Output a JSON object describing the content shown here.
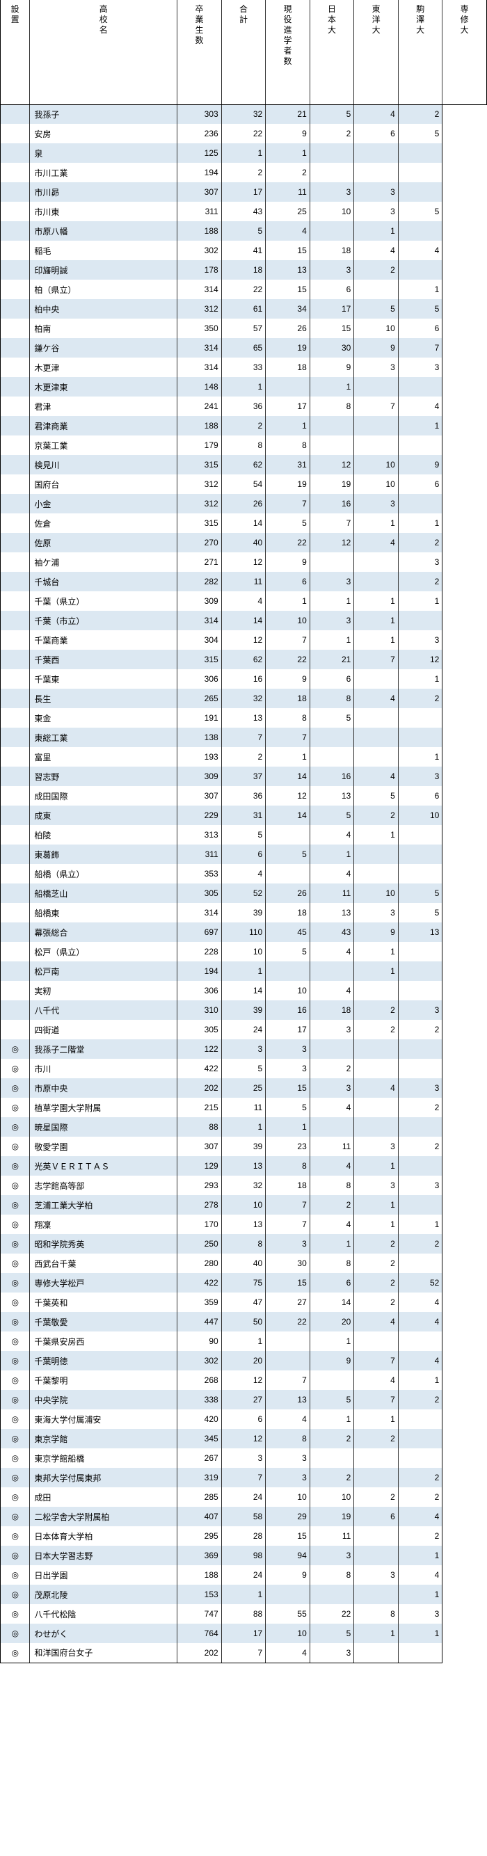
{
  "headers": [
    "設置",
    "高校名",
    "卒業生数",
    "合計",
    "現役進学者数",
    "日本大",
    "東洋大",
    "駒澤大",
    "専修大"
  ],
  "rows": [
    {
      "m": "",
      "n": "我孫子",
      "v": [
        "303",
        "32",
        "21",
        "5",
        "4",
        "2"
      ]
    },
    {
      "m": "",
      "n": "安房",
      "v": [
        "236",
        "22",
        "9",
        "2",
        "6",
        "5"
      ]
    },
    {
      "m": "",
      "n": "泉",
      "v": [
        "125",
        "1",
        "1",
        "",
        "",
        ""
      ]
    },
    {
      "m": "",
      "n": "市川工業",
      "v": [
        "194",
        "2",
        "2",
        "",
        "",
        ""
      ]
    },
    {
      "m": "",
      "n": "市川昴",
      "v": [
        "307",
        "17",
        "11",
        "3",
        "3",
        ""
      ]
    },
    {
      "m": "",
      "n": "市川東",
      "v": [
        "311",
        "43",
        "25",
        "10",
        "3",
        "5"
      ]
    },
    {
      "m": "",
      "n": "市原八幡",
      "v": [
        "188",
        "5",
        "4",
        "",
        "1",
        ""
      ]
    },
    {
      "m": "",
      "n": "稲毛",
      "v": [
        "302",
        "41",
        "15",
        "18",
        "4",
        "4"
      ]
    },
    {
      "m": "",
      "n": "印旛明誠",
      "v": [
        "178",
        "18",
        "13",
        "3",
        "2",
        ""
      ]
    },
    {
      "m": "",
      "n": "柏（県立）",
      "v": [
        "314",
        "22",
        "15",
        "6",
        "",
        "1"
      ]
    },
    {
      "m": "",
      "n": "柏中央",
      "v": [
        "312",
        "61",
        "34",
        "17",
        "5",
        "5"
      ]
    },
    {
      "m": "",
      "n": "柏南",
      "v": [
        "350",
        "57",
        "26",
        "15",
        "10",
        "6"
      ]
    },
    {
      "m": "",
      "n": "鎌ケ谷",
      "v": [
        "314",
        "65",
        "19",
        "30",
        "9",
        "7"
      ]
    },
    {
      "m": "",
      "n": "木更津",
      "v": [
        "314",
        "33",
        "18",
        "9",
        "3",
        "3"
      ]
    },
    {
      "m": "",
      "n": "木更津東",
      "v": [
        "148",
        "1",
        "",
        "1",
        "",
        ""
      ]
    },
    {
      "m": "",
      "n": "君津",
      "v": [
        "241",
        "36",
        "17",
        "8",
        "7",
        "4"
      ]
    },
    {
      "m": "",
      "n": "君津商業",
      "v": [
        "188",
        "2",
        "1",
        "",
        "",
        "1"
      ]
    },
    {
      "m": "",
      "n": "京葉工業",
      "v": [
        "179",
        "8",
        "8",
        "",
        "",
        ""
      ]
    },
    {
      "m": "",
      "n": "検見川",
      "v": [
        "315",
        "62",
        "31",
        "12",
        "10",
        "9"
      ]
    },
    {
      "m": "",
      "n": "国府台",
      "v": [
        "312",
        "54",
        "19",
        "19",
        "10",
        "6"
      ]
    },
    {
      "m": "",
      "n": "小金",
      "v": [
        "312",
        "26",
        "7",
        "16",
        "3",
        ""
      ]
    },
    {
      "m": "",
      "n": "佐倉",
      "v": [
        "315",
        "14",
        "5",
        "7",
        "1",
        "1"
      ]
    },
    {
      "m": "",
      "n": "佐原",
      "v": [
        "270",
        "40",
        "22",
        "12",
        "4",
        "2"
      ]
    },
    {
      "m": "",
      "n": "袖ケ浦",
      "v": [
        "271",
        "12",
        "9",
        "",
        "",
        "3"
      ]
    },
    {
      "m": "",
      "n": "千城台",
      "v": [
        "282",
        "11",
        "6",
        "3",
        "",
        "2"
      ]
    },
    {
      "m": "",
      "n": "千葉（県立）",
      "v": [
        "309",
        "4",
        "1",
        "1",
        "1",
        "1"
      ]
    },
    {
      "m": "",
      "n": "千葉（市立）",
      "v": [
        "314",
        "14",
        "10",
        "3",
        "1",
        ""
      ]
    },
    {
      "m": "",
      "n": "千葉商業",
      "v": [
        "304",
        "12",
        "7",
        "1",
        "1",
        "3"
      ]
    },
    {
      "m": "",
      "n": "千葉西",
      "v": [
        "315",
        "62",
        "22",
        "21",
        "7",
        "12"
      ]
    },
    {
      "m": "",
      "n": "千葉東",
      "v": [
        "306",
        "16",
        "9",
        "6",
        "",
        "1"
      ]
    },
    {
      "m": "",
      "n": "長生",
      "v": [
        "265",
        "32",
        "18",
        "8",
        "4",
        "2"
      ]
    },
    {
      "m": "",
      "n": "東金",
      "v": [
        "191",
        "13",
        "8",
        "5",
        "",
        ""
      ]
    },
    {
      "m": "",
      "n": "東総工業",
      "v": [
        "138",
        "7",
        "7",
        "",
        "",
        ""
      ]
    },
    {
      "m": "",
      "n": "富里",
      "v": [
        "193",
        "2",
        "1",
        "",
        "",
        "1"
      ]
    },
    {
      "m": "",
      "n": "習志野",
      "v": [
        "309",
        "37",
        "14",
        "16",
        "4",
        "3"
      ]
    },
    {
      "m": "",
      "n": "成田国際",
      "v": [
        "307",
        "36",
        "12",
        "13",
        "5",
        "6"
      ]
    },
    {
      "m": "",
      "n": "成東",
      "v": [
        "229",
        "31",
        "14",
        "5",
        "2",
        "10"
      ]
    },
    {
      "m": "",
      "n": "柏陵",
      "v": [
        "313",
        "5",
        "",
        "4",
        "1",
        ""
      ]
    },
    {
      "m": "",
      "n": "東葛飾",
      "v": [
        "311",
        "6",
        "5",
        "1",
        "",
        ""
      ]
    },
    {
      "m": "",
      "n": "船橋（県立）",
      "v": [
        "353",
        "4",
        "",
        "4",
        "",
        ""
      ]
    },
    {
      "m": "",
      "n": "船橋芝山",
      "v": [
        "305",
        "52",
        "26",
        "11",
        "10",
        "5"
      ]
    },
    {
      "m": "",
      "n": "船橋東",
      "v": [
        "314",
        "39",
        "18",
        "13",
        "3",
        "5"
      ]
    },
    {
      "m": "",
      "n": "幕張総合",
      "v": [
        "697",
        "110",
        "45",
        "43",
        "9",
        "13"
      ]
    },
    {
      "m": "",
      "n": "松戸（県立）",
      "v": [
        "228",
        "10",
        "5",
        "4",
        "1",
        ""
      ]
    },
    {
      "m": "",
      "n": "松戸南",
      "v": [
        "194",
        "1",
        "",
        "",
        "1",
        ""
      ]
    },
    {
      "m": "",
      "n": "実籾",
      "v": [
        "306",
        "14",
        "10",
        "4",
        "",
        ""
      ]
    },
    {
      "m": "",
      "n": "八千代",
      "v": [
        "310",
        "39",
        "16",
        "18",
        "2",
        "3"
      ]
    },
    {
      "m": "",
      "n": "四街道",
      "v": [
        "305",
        "24",
        "17",
        "3",
        "2",
        "2"
      ]
    },
    {
      "m": "◎",
      "n": "我孫子二階堂",
      "v": [
        "122",
        "3",
        "3",
        "",
        "",
        ""
      ]
    },
    {
      "m": "◎",
      "n": "市川",
      "v": [
        "422",
        "5",
        "3",
        "2",
        "",
        ""
      ]
    },
    {
      "m": "◎",
      "n": "市原中央",
      "v": [
        "202",
        "25",
        "15",
        "3",
        "4",
        "3"
      ]
    },
    {
      "m": "◎",
      "n": "植草学園大学附属",
      "v": [
        "215",
        "11",
        "5",
        "4",
        "",
        "2"
      ]
    },
    {
      "m": "◎",
      "n": "暁星国際",
      "v": [
        "88",
        "1",
        "1",
        "",
        "",
        ""
      ]
    },
    {
      "m": "◎",
      "n": "敬愛学園",
      "v": [
        "307",
        "39",
        "23",
        "11",
        "3",
        "2"
      ]
    },
    {
      "m": "◎",
      "n": "光英ＶＥＲＩＴＡＳ",
      "v": [
        "129",
        "13",
        "8",
        "4",
        "1",
        ""
      ]
    },
    {
      "m": "◎",
      "n": "志学館高等部",
      "v": [
        "293",
        "32",
        "18",
        "8",
        "3",
        "3"
      ]
    },
    {
      "m": "◎",
      "n": "芝浦工業大学柏",
      "v": [
        "278",
        "10",
        "7",
        "2",
        "1",
        ""
      ]
    },
    {
      "m": "◎",
      "n": "翔凜",
      "v": [
        "170",
        "13",
        "7",
        "4",
        "1",
        "1"
      ]
    },
    {
      "m": "◎",
      "n": "昭和学院秀英",
      "v": [
        "250",
        "8",
        "3",
        "1",
        "2",
        "2"
      ]
    },
    {
      "m": "◎",
      "n": "西武台千葉",
      "v": [
        "280",
        "40",
        "30",
        "8",
        "2",
        ""
      ]
    },
    {
      "m": "◎",
      "n": "専修大学松戸",
      "v": [
        "422",
        "75",
        "15",
        "6",
        "2",
        "52"
      ]
    },
    {
      "m": "◎",
      "n": "千葉英和",
      "v": [
        "359",
        "47",
        "27",
        "14",
        "2",
        "4"
      ]
    },
    {
      "m": "◎",
      "n": "千葉敬愛",
      "v": [
        "447",
        "50",
        "22",
        "20",
        "4",
        "4"
      ]
    },
    {
      "m": "◎",
      "n": "千葉県安房西",
      "v": [
        "90",
        "1",
        "",
        "1",
        "",
        ""
      ]
    },
    {
      "m": "◎",
      "n": "千葉明徳",
      "v": [
        "302",
        "20",
        "",
        "9",
        "7",
        "4"
      ]
    },
    {
      "m": "◎",
      "n": "千葉黎明",
      "v": [
        "268",
        "12",
        "7",
        "",
        "4",
        "1"
      ]
    },
    {
      "m": "◎",
      "n": "中央学院",
      "v": [
        "338",
        "27",
        "13",
        "5",
        "7",
        "2"
      ]
    },
    {
      "m": "◎",
      "n": "東海大学付属浦安",
      "v": [
        "420",
        "6",
        "4",
        "1",
        "1",
        ""
      ]
    },
    {
      "m": "◎",
      "n": "東京学館",
      "v": [
        "345",
        "12",
        "8",
        "2",
        "2",
        ""
      ]
    },
    {
      "m": "◎",
      "n": "東京学館船橋",
      "v": [
        "267",
        "3",
        "3",
        "",
        "",
        ""
      ]
    },
    {
      "m": "◎",
      "n": "東邦大学付属東邦",
      "v": [
        "319",
        "7",
        "3",
        "2",
        "",
        "2"
      ]
    },
    {
      "m": "◎",
      "n": "成田",
      "v": [
        "285",
        "24",
        "10",
        "10",
        "2",
        "2"
      ]
    },
    {
      "m": "◎",
      "n": "二松学舎大学附属柏",
      "v": [
        "407",
        "58",
        "29",
        "19",
        "6",
        "4"
      ]
    },
    {
      "m": "◎",
      "n": "日本体育大学柏",
      "v": [
        "295",
        "28",
        "15",
        "11",
        "",
        "2"
      ]
    },
    {
      "m": "◎",
      "n": "日本大学習志野",
      "v": [
        "369",
        "98",
        "94",
        "3",
        "",
        "1"
      ]
    },
    {
      "m": "◎",
      "n": "日出学園",
      "v": [
        "188",
        "24",
        "9",
        "8",
        "3",
        "4"
      ]
    },
    {
      "m": "◎",
      "n": "茂原北陵",
      "v": [
        "153",
        "1",
        "",
        "",
        "",
        "1"
      ]
    },
    {
      "m": "◎",
      "n": "八千代松陰",
      "v": [
        "747",
        "88",
        "55",
        "22",
        "8",
        "3"
      ]
    },
    {
      "m": "◎",
      "n": "わせがく",
      "v": [
        "764",
        "17",
        "10",
        "5",
        "1",
        "1"
      ]
    },
    {
      "m": "◎",
      "n": "和洋国府台女子",
      "v": [
        "202",
        "7",
        "4",
        "3",
        "",
        ""
      ]
    }
  ]
}
